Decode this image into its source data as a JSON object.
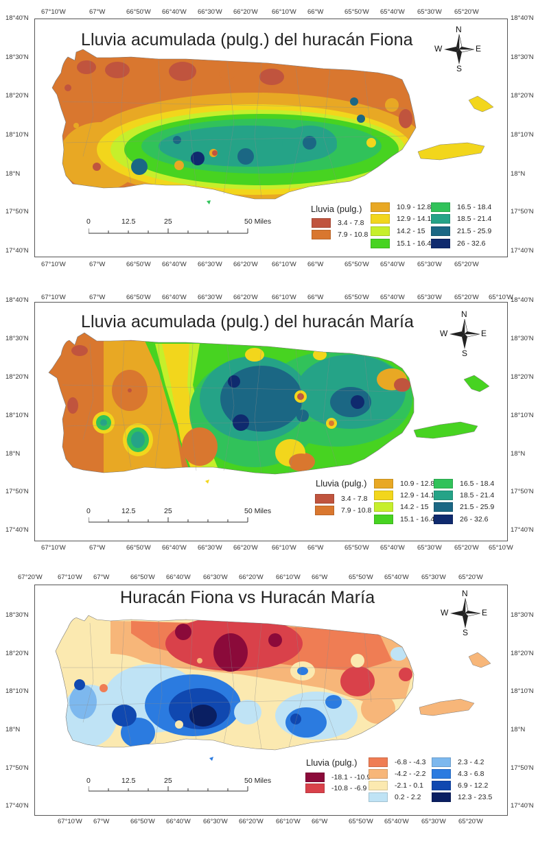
{
  "maps": [
    {
      "title": "Lluvia acumulada (pulg.) del huracán Fiona",
      "top_labels": [
        "67°10'W",
        "67°W",
        "66°50'W",
        "66°40'W",
        "66°30'W",
        "66°20'W",
        "66°10'W",
        "66°W",
        "65°50'W",
        "65°40'W",
        "65°30'W",
        "65°20'W"
      ],
      "bottom_labels": [
        "67°10'W",
        "67°W",
        "66°50'W",
        "66°40'W",
        "66°30'W",
        "66°20'W",
        "66°10'W",
        "66°W",
        "65°50'W",
        "65°40'W",
        "65°30'W",
        "65°20'W"
      ],
      "lat_labels": [
        "18°40'N",
        "18°30'N",
        "18°20'N",
        "18°10'N",
        "18°N",
        "17°50'N",
        "17°40'N"
      ],
      "legend_title": "Lluvia (pulg.)",
      "legend": [
        {
          "label": "3.4 - 7.8",
          "color": "#c0543e"
        },
        {
          "label": "7.9 - 10.8",
          "color": "#d9772f"
        },
        {
          "label": "10.9 - 12.8",
          "color": "#e8a824"
        },
        {
          "label": "12.9 - 14.1",
          "color": "#f2d61c"
        },
        {
          "label": "14.2 - 15",
          "color": "#c6ef2b"
        },
        {
          "label": "15.1 - 16.4",
          "color": "#47d321"
        },
        {
          "label": "16.5 - 18.4",
          "color": "#31c25a"
        },
        {
          "label": "18.5 - 21.4",
          "color": "#25a387"
        },
        {
          "label": "21.5 - 25.9",
          "color": "#1b6784"
        },
        {
          "label": "26 - 32.6",
          "color": "#0f2a6e"
        }
      ]
    },
    {
      "title": "Lluvia acumulada (pulg.) del huracán María",
      "top_labels": [
        "67°10'W",
        "67°W",
        "66°50'W",
        "66°40'W",
        "66°30'W",
        "66°20'W",
        "66°10'W",
        "66°W",
        "65°50'W",
        "65°40'W",
        "65°30'W",
        "65°20'W",
        "65°10'W"
      ],
      "bottom_labels": [
        "67°10'W",
        "67°W",
        "66°50'W",
        "66°40'W",
        "66°30'W",
        "66°20'W",
        "66°10'W",
        "66°W",
        "65°50'W",
        "65°40'W",
        "65°30'W",
        "65°20'W",
        "65°10'W"
      ],
      "lat_labels": [
        "18°40'N",
        "18°30'N",
        "18°20'N",
        "18°10'N",
        "18°N",
        "17°50'N",
        "17°40'N"
      ],
      "legend_title": "Lluvia (pulg.)",
      "legend": [
        {
          "label": "3.4 - 7.8",
          "color": "#c0543e"
        },
        {
          "label": "7.9 - 10.8",
          "color": "#d9772f"
        },
        {
          "label": "10.9 - 12.8",
          "color": "#e8a824"
        },
        {
          "label": "12.9 - 14.1",
          "color": "#f2d61c"
        },
        {
          "label": "14.2 - 15",
          "color": "#c6ef2b"
        },
        {
          "label": "15.1 - 16.4",
          "color": "#47d321"
        },
        {
          "label": "16.5 - 18.4",
          "color": "#31c25a"
        },
        {
          "label": "18.5 - 21.4",
          "color": "#25a387"
        },
        {
          "label": "21.5 - 25.9",
          "color": "#1b6784"
        },
        {
          "label": "26 - 32.6",
          "color": "#0f2a6e"
        }
      ]
    },
    {
      "title": "Huracán Fiona vs Huracán María",
      "top_labels": [
        "67°20'W",
        "67°10'W",
        "67°W",
        "66°50'W",
        "66°40'W",
        "66°30'W",
        "66°20'W",
        "66°10'W",
        "66°W",
        "65°50'W",
        "65°40'W",
        "65°30'W",
        "65°20'W"
      ],
      "bottom_labels": [
        "67°10'W",
        "67°W",
        "66°50'W",
        "66°40'W",
        "66°30'W",
        "66°20'W",
        "66°10'W",
        "66°W",
        "65°50'W",
        "65°40'W",
        "65°30'W",
        "65°20'W"
      ],
      "lat_labels": [
        "18°30'N",
        "18°20'N",
        "18°10'N",
        "18°N",
        "17°50'N",
        "17°40'N"
      ],
      "legend_title": "Lluvia (pulg.)",
      "legend": [
        {
          "label": "-18.1 - -10.9",
          "color": "#8b0a3a"
        },
        {
          "label": "-10.8 - -6.9",
          "color": "#d9414a"
        },
        {
          "label": "-6.8 - -4.3",
          "color": "#ef7d54"
        },
        {
          "label": "-4.2 - -2.2",
          "color": "#f7b679"
        },
        {
          "label": "-2.1 - 0.1",
          "color": "#fbe9b0"
        },
        {
          "label": "0.2 - 2.2",
          "color": "#bfe3f5"
        },
        {
          "label": "2.3 - 4.2",
          "color": "#7db8ee"
        },
        {
          "label": "4.3 - 6.8",
          "color": "#2b7be0"
        },
        {
          "label": "6.9 - 12.2",
          "color": "#1048b0"
        },
        {
          "label": "12.3 - 23.5",
          "color": "#0a1f62"
        }
      ]
    }
  ],
  "scale": {
    "labels": [
      "0",
      "12.5",
      "25",
      "50 Miles"
    ]
  },
  "compass": {
    "n": "N",
    "s": "S",
    "e": "E",
    "w": "W"
  }
}
